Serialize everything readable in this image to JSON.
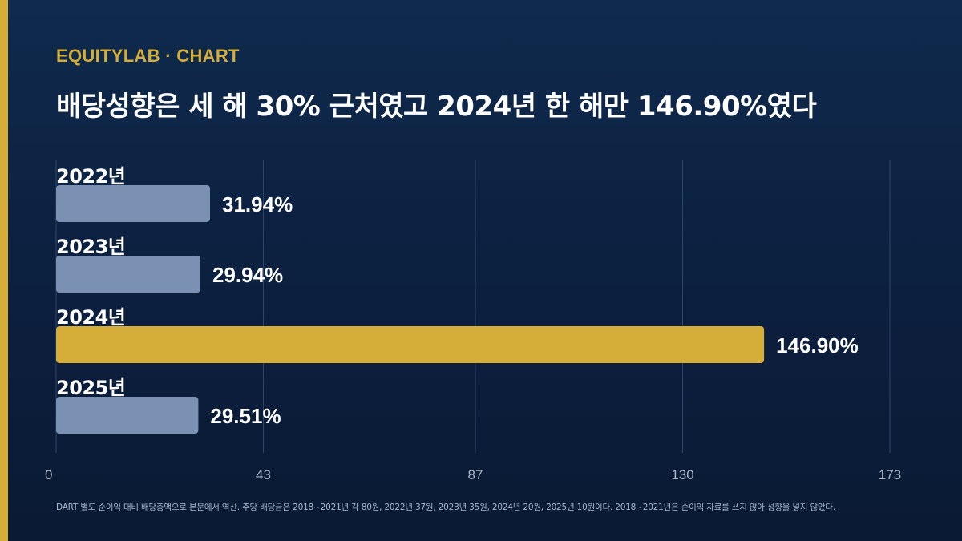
{
  "brand": {
    "accent_color": "#d4ae38"
  },
  "header": {
    "kicker": "EQUITYLAB · CHART",
    "title": "배당성향은 세 해 30% 근처였고 2024년 한 해만 146.90%였다"
  },
  "chart_data": {
    "type": "bar",
    "orientation": "horizontal",
    "title": "배당성향은 세 해 30% 근처였고 2024년 한 해만 146.90%였다",
    "categories": [
      "2022년",
      "2023년",
      "2024년",
      "2025년"
    ],
    "values": [
      31.94,
      29.94,
      146.9,
      29.51
    ],
    "value_labels": [
      "31.94%",
      "29.94%",
      "146.90%",
      "29.51%"
    ],
    "highlight_index": 2,
    "colors": {
      "default": "#7a91b4",
      "highlight": "#d4ae38",
      "grid": "#2e4668",
      "text": "#ffffff",
      "tick": "#a9b8cc"
    },
    "xlim": [
      0,
      173
    ],
    "xticks": [
      0,
      43,
      87,
      130,
      173
    ],
    "xlabel": "",
    "ylabel": "",
    "grid": true,
    "legend": "none"
  },
  "footnote": "DART 별도 순이익 대비 배당총액으로 본문에서 역산. 주당 배당금은 2018~2021년 각 80원, 2022년 37원, 2023년 35원, 2024년 20원, 2025년 10원이다. 2018~2021년은 순이익 자료를 쓰지 않아 성향을 넣지 않았다."
}
